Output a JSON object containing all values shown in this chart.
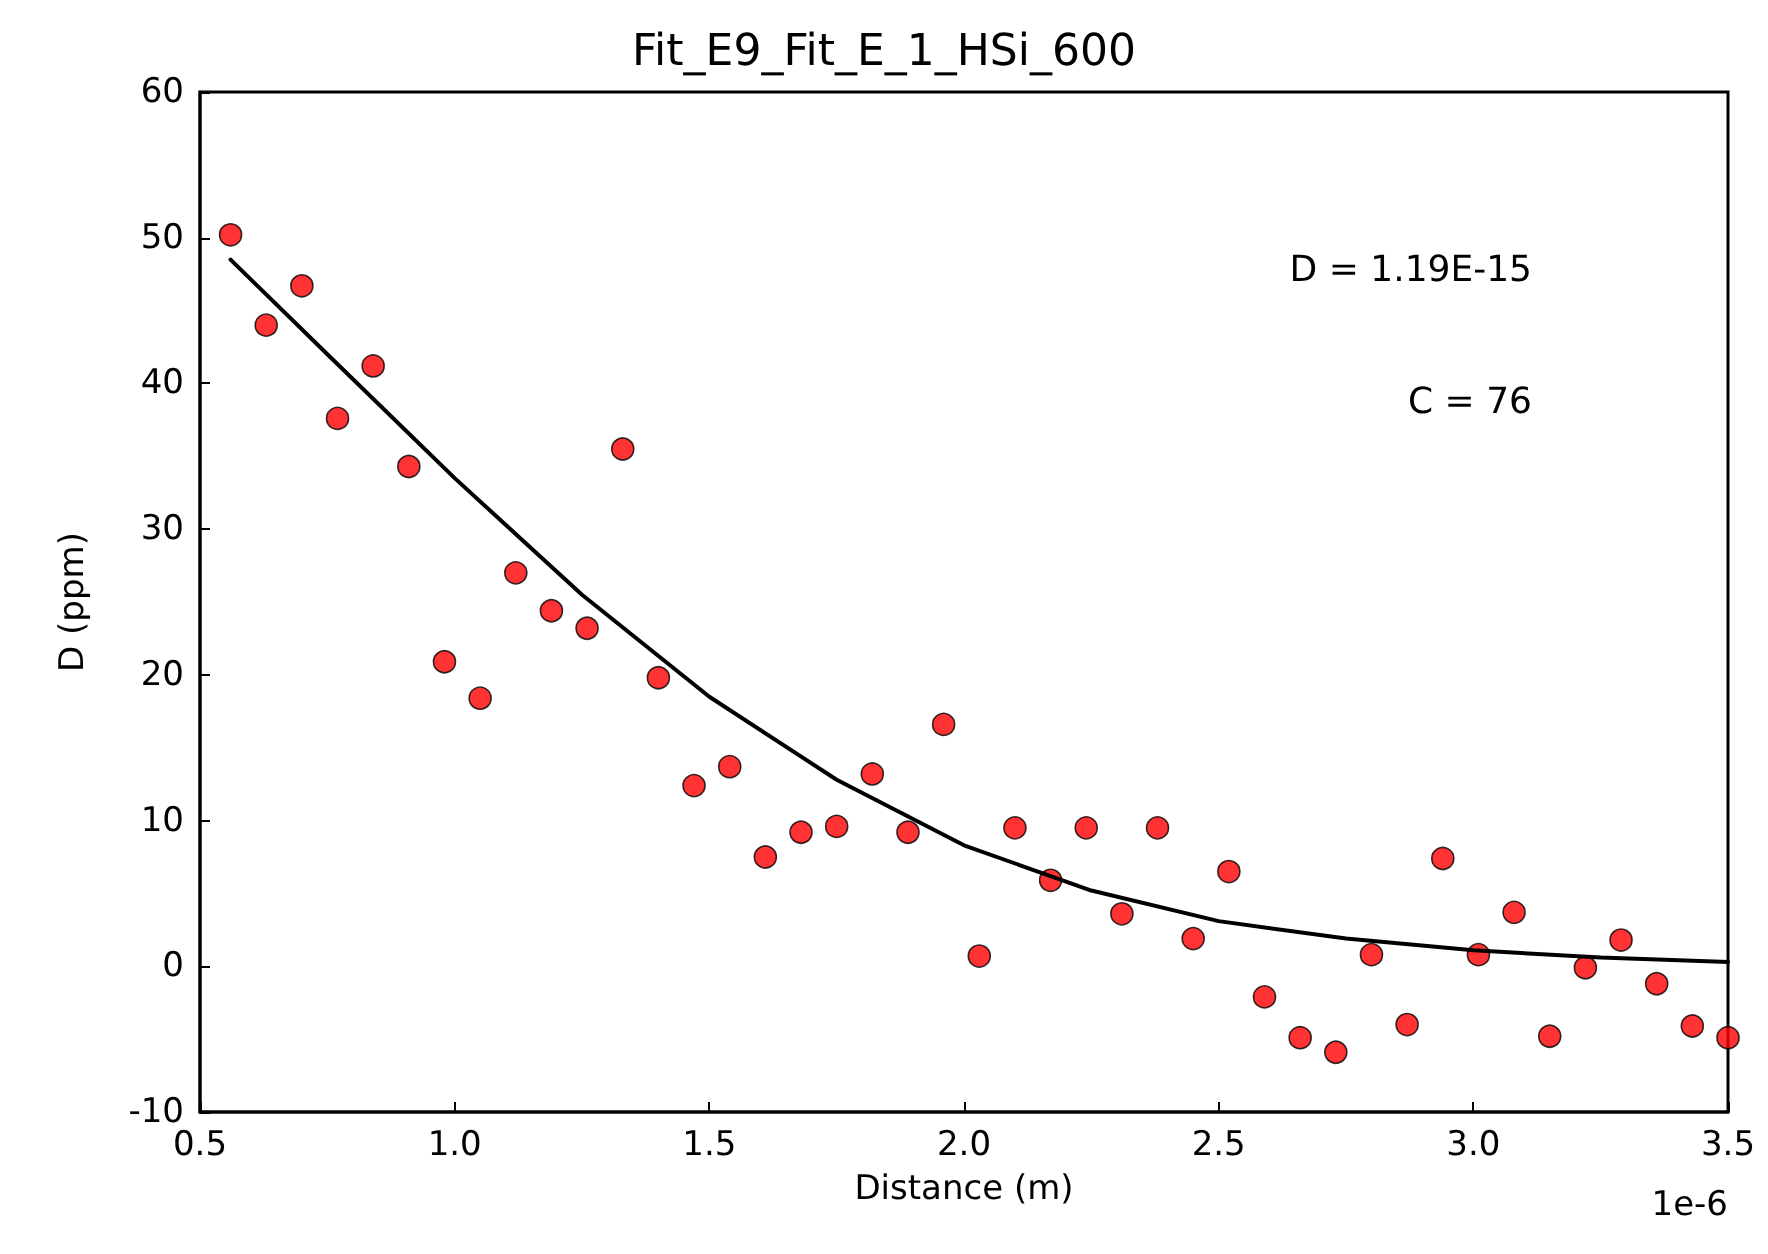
{
  "chart_data": {
    "type": "scatter",
    "title": "Fit_E9_Fit_E_1_HSi_600",
    "xlabel": "Distance (m)",
    "ylabel": "D (ppm)",
    "xlim": [
      0.5,
      3.5
    ],
    "xticks": [
      0.5,
      {
        "value": 1,
        "label": "1.0"
      },
      1.5,
      {
        "value": 2,
        "label": "2.0"
      },
      2.5,
      {
        "value": 3,
        "label": "3.0"
      },
      3.5
    ],
    "ylim": [
      -10,
      60
    ],
    "yticks": [
      -10,
      0,
      10,
      20,
      30,
      40,
      50,
      60
    ],
    "grid": false,
    "marker": "circle",
    "annotations": [
      "D = 1.19E-15",
      "C = 76",
      "1e-6"
    ],
    "series": [
      {
        "type": "scatter",
        "color": "#ff0000",
        "x": [
          0.56,
          0.63,
          0.7,
          0.77,
          0.84,
          0.91,
          0.98,
          1.05,
          1.12,
          1.19,
          1.26,
          1.33,
          1.4,
          1.47,
          1.54,
          1.61,
          1.68,
          1.75,
          1.82,
          1.89,
          1.96,
          2.03,
          2.1,
          2.17,
          2.24,
          2.31,
          2.38,
          2.45,
          2.52,
          2.59,
          2.66,
          2.73,
          2.8,
          2.87,
          2.94,
          3.01,
          3.08,
          3.15,
          3.22,
          3.29,
          3.36,
          3.43,
          3.5
        ],
        "values": [
          50.2,
          44,
          46.7,
          37.6,
          41.2,
          34.3,
          20.9,
          18.4,
          27,
          24.4,
          23.2,
          35.5,
          19.8,
          12.4,
          13.7,
          7.5,
          9.2,
          9.6,
          13.2,
          9.2,
          16.6,
          0.7,
          9.5,
          5.9,
          9.5,
          3.6,
          9.5,
          1.9,
          6.5,
          -2.1,
          -4.9,
          -5.9,
          0.8,
          -4,
          7.4,
          0.8,
          3.7,
          -4.8,
          -0.1,
          1.8,
          -1.2,
          -4.1,
          -4.9
        ]
      },
      {
        "type": "line",
        "color": "#000000",
        "marker": "none",
        "line_style": "solid",
        "x": [
          0.56,
          0.75,
          1.0,
          1.25,
          1.5,
          1.75,
          2.0,
          2.25,
          2.5,
          2.75,
          3.0,
          3.25,
          3.5
        ],
        "values": [
          48.5,
          42,
          33.5,
          25.5,
          18.5,
          12.8,
          8.3,
          5.2,
          3.1,
          1.9,
          1.1,
          0.6,
          0.3
        ]
      }
    ]
  }
}
